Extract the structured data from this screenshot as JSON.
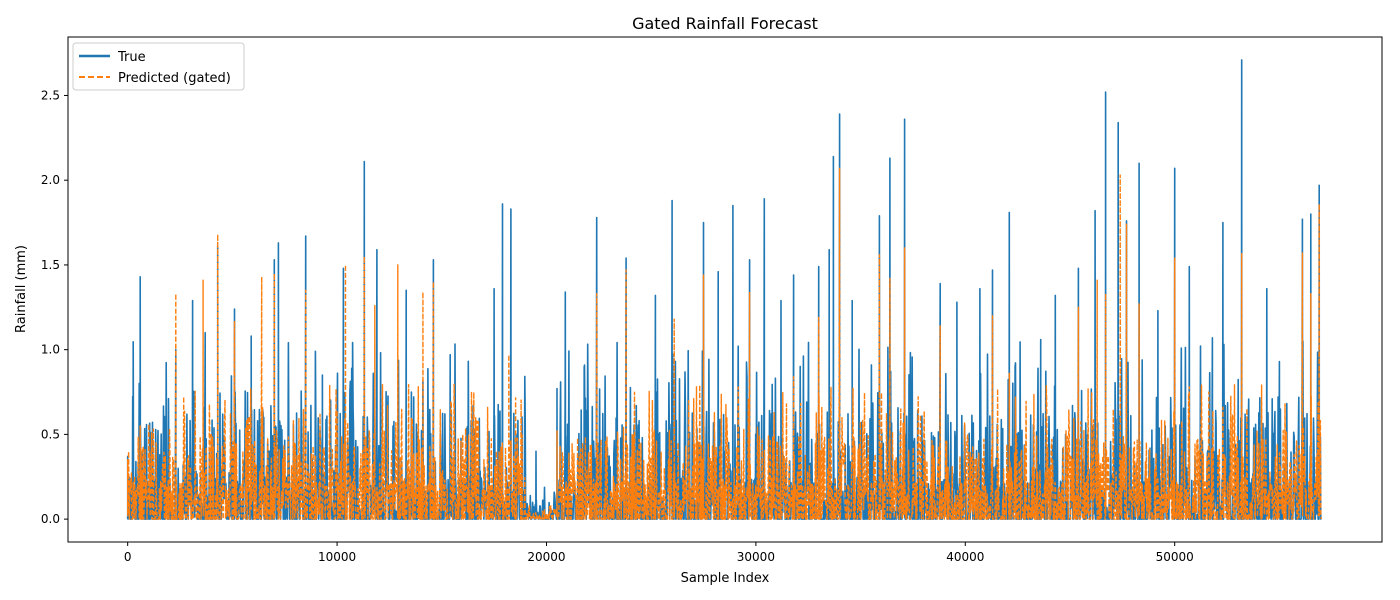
{
  "chart_data": {
    "type": "line",
    "title": "Gated Rainfall Forecast",
    "xlabel": "Sample Index",
    "ylabel": "Rainfall (mm)",
    "xlim": [
      -2850,
      59900
    ],
    "ylim": [
      -0.135,
      2.845
    ],
    "xticks": [
      0,
      10000,
      20000,
      30000,
      40000,
      50000
    ],
    "yticks": [
      0.0,
      0.5,
      1.0,
      1.5,
      2.0,
      2.5
    ],
    "ytick_labels": [
      "0.0",
      "0.5",
      "1.0",
      "1.5",
      "2.0",
      "2.5"
    ],
    "grid": false,
    "legend_position": "top-left",
    "series": [
      {
        "name": "True",
        "color": "#1f77b4",
        "linestyle": "solid",
        "peaks": [
          {
            "x": 0,
            "y": 0.37
          },
          {
            "x": 250,
            "y": 0.68
          },
          {
            "x": 600,
            "y": 1.43
          },
          {
            "x": 1100,
            "y": 0.47
          },
          {
            "x": 2300,
            "y": 1.0
          },
          {
            "x": 3100,
            "y": 1.29
          },
          {
            "x": 3700,
            "y": 1.1
          },
          {
            "x": 4300,
            "y": 1.61
          },
          {
            "x": 5100,
            "y": 1.24
          },
          {
            "x": 5900,
            "y": 1.08
          },
          {
            "x": 6500,
            "y": 0.6
          },
          {
            "x": 7000,
            "y": 1.53
          },
          {
            "x": 7200,
            "y": 1.63
          },
          {
            "x": 8500,
            "y": 1.67
          },
          {
            "x": 9300,
            "y": 0.85
          },
          {
            "x": 10300,
            "y": 1.48
          },
          {
            "x": 11300,
            "y": 2.11
          },
          {
            "x": 11900,
            "y": 1.59
          },
          {
            "x": 13300,
            "y": 1.35
          },
          {
            "x": 14600,
            "y": 1.53
          },
          {
            "x": 15400,
            "y": 0.97
          },
          {
            "x": 16500,
            "y": 0.67
          },
          {
            "x": 17500,
            "y": 1.36
          },
          {
            "x": 17900,
            "y": 1.86
          },
          {
            "x": 18300,
            "y": 1.83
          },
          {
            "x": 19500,
            "y": 0.4
          },
          {
            "x": 20500,
            "y": 0.77
          },
          {
            "x": 20900,
            "y": 1.34
          },
          {
            "x": 21800,
            "y": 0.9
          },
          {
            "x": 22400,
            "y": 1.78
          },
          {
            "x": 23800,
            "y": 1.54
          },
          {
            "x": 25200,
            "y": 1.32
          },
          {
            "x": 26000,
            "y": 1.88
          },
          {
            "x": 27500,
            "y": 1.75
          },
          {
            "x": 28200,
            "y": 1.46
          },
          {
            "x": 28900,
            "y": 1.85
          },
          {
            "x": 29700,
            "y": 1.53
          },
          {
            "x": 30400,
            "y": 1.89
          },
          {
            "x": 31200,
            "y": 1.29
          },
          {
            "x": 31800,
            "y": 1.44
          },
          {
            "x": 33000,
            "y": 1.49
          },
          {
            "x": 33500,
            "y": 1.59
          },
          {
            "x": 33700,
            "y": 2.14
          },
          {
            "x": 34000,
            "y": 2.39
          },
          {
            "x": 34600,
            "y": 1.29
          },
          {
            "x": 35900,
            "y": 1.79
          },
          {
            "x": 36400,
            "y": 2.13
          },
          {
            "x": 37100,
            "y": 2.36
          },
          {
            "x": 38800,
            "y": 1.39
          },
          {
            "x": 39600,
            "y": 1.28
          },
          {
            "x": 40700,
            "y": 1.36
          },
          {
            "x": 41300,
            "y": 1.47
          },
          {
            "x": 42100,
            "y": 1.81
          },
          {
            "x": 43600,
            "y": 1.06
          },
          {
            "x": 44300,
            "y": 1.32
          },
          {
            "x": 45400,
            "y": 1.48
          },
          {
            "x": 46200,
            "y": 1.82
          },
          {
            "x": 46700,
            "y": 2.52
          },
          {
            "x": 47300,
            "y": 2.34
          },
          {
            "x": 47700,
            "y": 1.76
          },
          {
            "x": 48300,
            "y": 2.1
          },
          {
            "x": 49200,
            "y": 1.23
          },
          {
            "x": 50000,
            "y": 2.07
          },
          {
            "x": 50700,
            "y": 1.49
          },
          {
            "x": 51800,
            "y": 1.07
          },
          {
            "x": 52300,
            "y": 1.75
          },
          {
            "x": 53200,
            "y": 2.71
          },
          {
            "x": 54400,
            "y": 1.36
          },
          {
            "x": 55000,
            "y": 0.93
          },
          {
            "x": 56100,
            "y": 1.77
          },
          {
            "x": 56500,
            "y": 1.8
          },
          {
            "x": 56900,
            "y": 1.97
          }
        ]
      },
      {
        "name": "Predicted (gated)",
        "color": "#ff7f0e",
        "linestyle": "dashed",
        "peaks": [
          {
            "x": 0,
            "y": 0.35
          },
          {
            "x": 600,
            "y": 0.55
          },
          {
            "x": 2300,
            "y": 1.33
          },
          {
            "x": 3600,
            "y": 1.41
          },
          {
            "x": 4300,
            "y": 1.68
          },
          {
            "x": 5100,
            "y": 1.17
          },
          {
            "x": 6400,
            "y": 1.43
          },
          {
            "x": 7000,
            "y": 1.45
          },
          {
            "x": 8500,
            "y": 1.35
          },
          {
            "x": 10400,
            "y": 1.5
          },
          {
            "x": 11300,
            "y": 1.55
          },
          {
            "x": 11800,
            "y": 1.26
          },
          {
            "x": 12900,
            "y": 1.5
          },
          {
            "x": 14100,
            "y": 1.34
          },
          {
            "x": 14600,
            "y": 1.4
          },
          {
            "x": 16000,
            "y": 0.5
          },
          {
            "x": 18200,
            "y": 0.97
          },
          {
            "x": 20500,
            "y": 0.52
          },
          {
            "x": 22400,
            "y": 1.33
          },
          {
            "x": 23800,
            "y": 1.47
          },
          {
            "x": 26100,
            "y": 1.18
          },
          {
            "x": 27500,
            "y": 1.44
          },
          {
            "x": 29700,
            "y": 1.34
          },
          {
            "x": 31800,
            "y": 0.84
          },
          {
            "x": 33000,
            "y": 1.19
          },
          {
            "x": 34000,
            "y": 2.07
          },
          {
            "x": 35900,
            "y": 1.56
          },
          {
            "x": 36400,
            "y": 1.42
          },
          {
            "x": 37100,
            "y": 1.6
          },
          {
            "x": 38800,
            "y": 1.14
          },
          {
            "x": 41300,
            "y": 1.2
          },
          {
            "x": 42100,
            "y": 0.86
          },
          {
            "x": 45400,
            "y": 1.25
          },
          {
            "x": 46300,
            "y": 1.41
          },
          {
            "x": 46700,
            "y": 1.33
          },
          {
            "x": 47400,
            "y": 2.03
          },
          {
            "x": 47700,
            "y": 1.74
          },
          {
            "x": 48300,
            "y": 1.27
          },
          {
            "x": 50000,
            "y": 1.54
          },
          {
            "x": 50700,
            "y": 0.78
          },
          {
            "x": 52300,
            "y": 0.66
          },
          {
            "x": 53200,
            "y": 1.57
          },
          {
            "x": 56100,
            "y": 1.57
          },
          {
            "x": 56500,
            "y": 1.33
          },
          {
            "x": 56900,
            "y": 1.86
          }
        ]
      }
    ]
  }
}
